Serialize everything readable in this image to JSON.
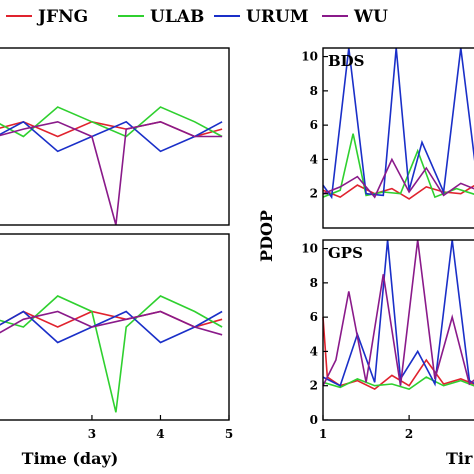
{
  "legend": {
    "entries": [
      {
        "name": "JFNG",
        "color": "#e0232e"
      },
      {
        "name": "ULAB",
        "color": "#2fd02f"
      },
      {
        "name": "URUM",
        "color": "#1a2fc8"
      },
      {
        "name": "WU",
        "color": "#8a1a8a"
      }
    ]
  },
  "colors": {
    "frame": "#000000",
    "background": "#ffffff"
  },
  "chart_data": [
    {
      "type": "line",
      "panel": "left-top",
      "title": "",
      "xlim": [
        1.6,
        5
      ],
      "ylim": [
        0,
        12
      ],
      "yticks": [],
      "xticks": [],
      "series": [
        {
          "name": "JFNG",
          "color": "#e0232e",
          "x": [
            1.6,
            2.0,
            2.5,
            3.0,
            3.5,
            4.0,
            4.5,
            4.9
          ],
          "y": [
            6.5,
            7,
            6,
            7,
            6.5,
            7,
            6,
            6.5
          ]
        },
        {
          "name": "ULAB",
          "color": "#2fd02f",
          "x": [
            1.6,
            2.0,
            2.5,
            3.0,
            3.5,
            4.0,
            4.5,
            4.9
          ],
          "y": [
            7,
            6,
            8,
            7,
            6,
            8,
            7,
            6
          ]
        },
        {
          "name": "URUM",
          "color": "#1a2fc8",
          "x": [
            1.6,
            2.0,
            2.5,
            3.0,
            3.5,
            4.0,
            4.5,
            4.9
          ],
          "y": [
            6,
            7,
            5,
            6,
            7,
            5,
            6,
            7
          ]
        },
        {
          "name": "WU",
          "color": "#8a1a8a",
          "x": [
            1.6,
            2.0,
            2.5,
            3.0,
            3.35,
            3.5,
            4.0,
            4.5,
            4.9
          ],
          "y": [
            6,
            6.5,
            7,
            6,
            0,
            6.5,
            7,
            6,
            6
          ]
        }
      ]
    },
    {
      "type": "line",
      "panel": "left-bottom",
      "title": "",
      "xlabel": "Time (day)",
      "xlim": [
        1.6,
        5
      ],
      "ylim": [
        0,
        12
      ],
      "xticks": [
        3,
        4,
        5
      ],
      "series": [
        {
          "name": "JFNG",
          "color": "#e0232e",
          "x": [
            1.6,
            2.0,
            2.5,
            3.0,
            3.5,
            4.0,
            4.5,
            4.9
          ],
          "y": [
            6,
            7,
            6,
            7,
            6.5,
            7,
            6,
            6.5
          ]
        },
        {
          "name": "ULAB",
          "color": "#2fd02f",
          "x": [
            1.6,
            2.0,
            2.5,
            3.0,
            3.35,
            3.5,
            4.0,
            4.5,
            4.9
          ],
          "y": [
            6.5,
            6,
            8,
            7,
            0.5,
            6,
            8,
            7,
            6
          ]
        },
        {
          "name": "URUM",
          "color": "#1a2fc8",
          "x": [
            1.6,
            2.0,
            2.5,
            3.0,
            3.5,
            4.0,
            4.5,
            4.9
          ],
          "y": [
            6,
            7,
            5,
            6,
            7,
            5,
            6,
            7
          ]
        },
        {
          "name": "WU",
          "color": "#8a1a8a",
          "x": [
            1.6,
            2.0,
            2.5,
            3.0,
            3.5,
            4.0,
            4.5,
            4.9
          ],
          "y": [
            5.5,
            6.5,
            7,
            6,
            6.5,
            7,
            6,
            5.5
          ]
        }
      ]
    },
    {
      "type": "line",
      "panel": "right-top",
      "title": "BDS",
      "ylabel": "PDOP",
      "xlim": [
        1,
        2.8
      ],
      "ylim": [
        0,
        10.5
      ],
      "yticks": [
        2,
        4,
        6,
        8,
        10
      ],
      "series": [
        {
          "name": "JFNG",
          "color": "#e0232e",
          "x": [
            1.0,
            1.2,
            1.4,
            1.6,
            1.8,
            2.0,
            2.2,
            2.4,
            2.6,
            2.8
          ],
          "y": [
            2.2,
            1.8,
            2.5,
            2.0,
            2.3,
            1.7,
            2.4,
            2.1,
            2.0,
            2.6
          ]
        },
        {
          "name": "ULAB",
          "color": "#2fd02f",
          "x": [
            1.0,
            1.2,
            1.35,
            1.5,
            1.7,
            1.9,
            2.1,
            2.3,
            2.55,
            2.8
          ],
          "y": [
            1.8,
            2.2,
            5.5,
            1.9,
            2.1,
            2.0,
            4.5,
            1.8,
            2.3,
            1.9
          ]
        },
        {
          "name": "URUM",
          "color": "#1a2fc8",
          "x": [
            1.0,
            1.1,
            1.3,
            1.5,
            1.7,
            1.85,
            2.0,
            2.15,
            2.4,
            2.6,
            2.8
          ],
          "y": [
            2.5,
            1.8,
            10.5,
            2.0,
            1.9,
            10.5,
            2.2,
            5.0,
            2.1,
            10.5,
            2.4
          ]
        },
        {
          "name": "WU",
          "color": "#8a1a8a",
          "x": [
            1.0,
            1.2,
            1.4,
            1.6,
            1.8,
            2.0,
            2.2,
            2.4,
            2.6,
            2.8
          ],
          "y": [
            2.0,
            2.4,
            3.0,
            1.8,
            4.0,
            2.1,
            3.5,
            1.9,
            2.6,
            2.2
          ]
        }
      ]
    },
    {
      "type": "line",
      "panel": "right-bottom",
      "title": "GPS",
      "xlim": [
        1,
        2.8
      ],
      "ylim": [
        0,
        10.5
      ],
      "yticks": [
        0,
        2,
        4,
        6,
        8,
        10
      ],
      "xticks": [
        1,
        2
      ],
      "xlabel": "Tir",
      "series": [
        {
          "name": "JFNG",
          "color": "#e0232e",
          "x": [
            1.0,
            1.05,
            1.2,
            1.4,
            1.6,
            1.8,
            2.0,
            2.2,
            2.4,
            2.6,
            2.8
          ],
          "y": [
            6.0,
            2.5,
            2.0,
            2.3,
            1.8,
            2.6,
            2.0,
            3.5,
            2.1,
            2.4,
            2.0
          ]
        },
        {
          "name": "ULAB",
          "color": "#2fd02f",
          "x": [
            1.0,
            1.2,
            1.4,
            1.6,
            1.8,
            2.0,
            2.2,
            2.4,
            2.6,
            2.8
          ],
          "y": [
            2.2,
            1.9,
            2.4,
            2.0,
            2.1,
            1.8,
            2.5,
            2.0,
            2.3,
            1.9
          ]
        },
        {
          "name": "URUM",
          "color": "#1a2fc8",
          "x": [
            1.0,
            1.2,
            1.4,
            1.6,
            1.75,
            1.9,
            2.1,
            2.3,
            2.5,
            2.7,
            2.8
          ],
          "y": [
            2.5,
            2.0,
            5.0,
            2.2,
            10.5,
            2.4,
            4.0,
            2.1,
            10.5,
            2.3,
            2.0
          ]
        },
        {
          "name": "WU",
          "color": "#8a1a8a",
          "x": [
            1.0,
            1.15,
            1.3,
            1.5,
            1.7,
            1.9,
            2.1,
            2.3,
            2.5,
            2.7,
            2.8
          ],
          "y": [
            2.0,
            3.5,
            7.5,
            2.2,
            8.5,
            2.0,
            10.5,
            2.4,
            6.0,
            2.1,
            2.5
          ]
        }
      ]
    }
  ]
}
